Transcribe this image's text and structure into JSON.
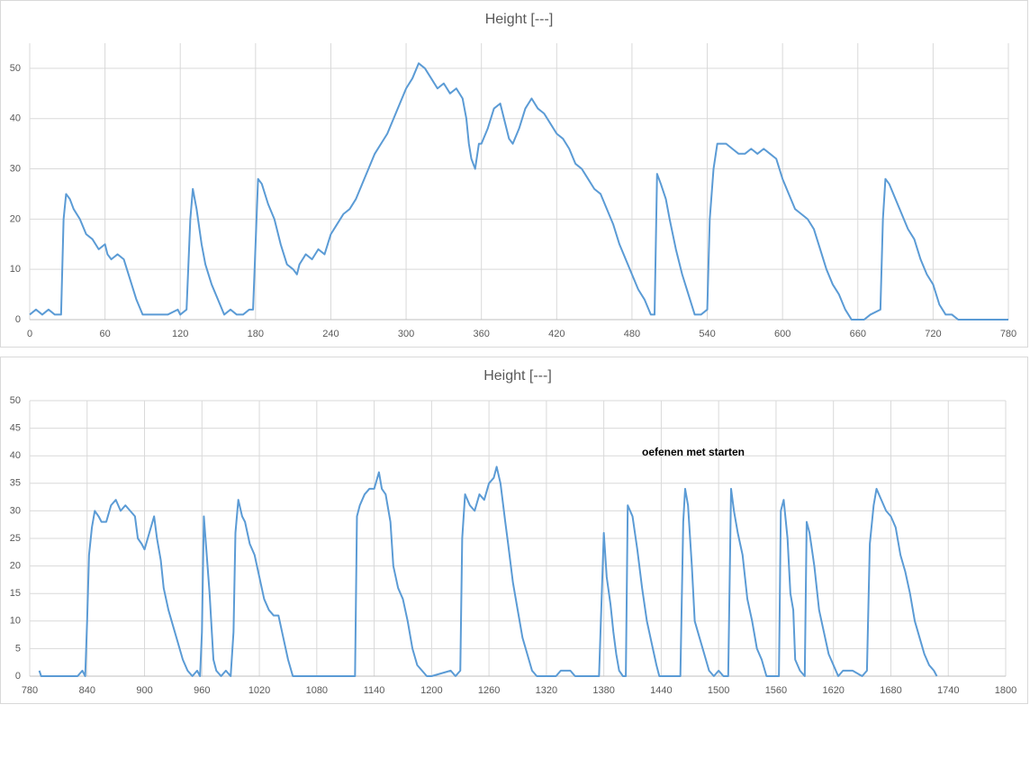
{
  "chart_data": [
    {
      "type": "line",
      "title": "Height [---]",
      "x": [
        0,
        5,
        10,
        15,
        20,
        25,
        27,
        29,
        32,
        35,
        40,
        45,
        50,
        55,
        60,
        62,
        65,
        70,
        75,
        80,
        85,
        90,
        95,
        100,
        110,
        118,
        120,
        125,
        128,
        130,
        133,
        137,
        140,
        145,
        150,
        155,
        160,
        165,
        170,
        175,
        178,
        180,
        182,
        185,
        190,
        195,
        200,
        205,
        210,
        213,
        215,
        220,
        225,
        230,
        235,
        240,
        245,
        250,
        255,
        260,
        265,
        270,
        275,
        280,
        285,
        290,
        295,
        300,
        305,
        310,
        315,
        320,
        325,
        330,
        335,
        340,
        345,
        348,
        350,
        352,
        355,
        358,
        360,
        365,
        370,
        375,
        378,
        382,
        385,
        390,
        395,
        400,
        405,
        410,
        415,
        420,
        425,
        430,
        435,
        440,
        445,
        450,
        455,
        460,
        465,
        470,
        475,
        480,
        485,
        490,
        495,
        498,
        500,
        503,
        507,
        510,
        515,
        520,
        525,
        530,
        535,
        540,
        542,
        545,
        548,
        555,
        560,
        565,
        570,
        575,
        580,
        585,
        590,
        595,
        600,
        605,
        610,
        615,
        620,
        625,
        630,
        635,
        640,
        645,
        650,
        655,
        660,
        665,
        670,
        678,
        680,
        682,
        685,
        690,
        695,
        700,
        705,
        710,
        715,
        720,
        725,
        730,
        735,
        740,
        780
      ],
      "series": [
        {
          "name": "Height",
          "color": "#5b9bd5",
          "values": [
            1,
            2,
            1,
            2,
            1,
            1,
            20,
            25,
            24,
            22,
            20,
            17,
            16,
            14,
            15,
            13,
            12,
            13,
            12,
            8,
            4,
            1,
            1,
            1,
            1,
            2,
            1,
            2,
            20,
            26,
            22,
            15,
            11,
            7,
            4,
            1,
            2,
            1,
            1,
            2,
            2,
            15,
            28,
            27,
            23,
            20,
            15,
            11,
            10,
            9,
            11,
            13,
            12,
            14,
            13,
            17,
            19,
            21,
            22,
            24,
            27,
            30,
            33,
            35,
            37,
            40,
            43,
            46,
            48,
            51,
            50,
            48,
            46,
            47,
            45,
            46,
            44,
            40,
            35,
            32,
            30,
            35,
            35,
            38,
            42,
            43,
            40,
            36,
            35,
            38,
            42,
            44,
            42,
            41,
            39,
            37,
            36,
            34,
            31,
            30,
            28,
            26,
            25,
            22,
            19,
            15,
            12,
            9,
            6,
            4,
            1,
            1,
            29,
            27,
            24,
            20,
            14,
            9,
            5,
            1,
            1,
            2,
            20,
            30,
            35,
            35,
            34,
            33,
            33,
            34,
            33,
            34,
            33,
            32,
            28,
            25,
            22,
            21,
            20,
            18,
            14,
            10,
            7,
            5,
            2,
            0,
            0,
            0,
            1,
            2,
            20,
            28,
            27,
            24,
            21,
            18,
            16,
            12,
            9,
            7,
            3,
            1,
            1,
            0,
            0
          ]
        }
      ],
      "xlim": [
        0,
        780
      ],
      "xticks": [
        0,
        60,
        120,
        180,
        240,
        300,
        360,
        420,
        480,
        540,
        600,
        660,
        720,
        780
      ],
      "ylim": [
        0,
        55
      ],
      "yticks": [
        0,
        10,
        20,
        30,
        40,
        50
      ],
      "grid": true
    },
    {
      "type": "line",
      "title": "Height [---]",
      "annotation": "oefenen met starten",
      "x": [
        790,
        792,
        830,
        835,
        838,
        840,
        842,
        845,
        848,
        852,
        855,
        860,
        865,
        870,
        875,
        880,
        885,
        890,
        893,
        897,
        900,
        905,
        910,
        913,
        917,
        920,
        925,
        930,
        935,
        940,
        945,
        950,
        955,
        958,
        960,
        962,
        965,
        968,
        970,
        972,
        975,
        980,
        985,
        990,
        993,
        995,
        998,
        1002,
        1005,
        1010,
        1015,
        1020,
        1025,
        1030,
        1035,
        1040,
        1045,
        1050,
        1055,
        1120,
        1122,
        1125,
        1130,
        1135,
        1140,
        1145,
        1148,
        1152,
        1157,
        1160,
        1165,
        1170,
        1175,
        1180,
        1185,
        1190,
        1195,
        1200,
        1220,
        1225,
        1230,
        1232,
        1235,
        1240,
        1245,
        1250,
        1255,
        1260,
        1265,
        1268,
        1272,
        1277,
        1280,
        1285,
        1290,
        1295,
        1300,
        1305,
        1310,
        1330,
        1335,
        1345,
        1350,
        1375,
        1380,
        1383,
        1387,
        1390,
        1393,
        1396,
        1400,
        1403,
        1405,
        1410,
        1415,
        1420,
        1425,
        1430,
        1435,
        1438,
        1460,
        1463,
        1465,
        1468,
        1472,
        1475,
        1480,
        1485,
        1490,
        1495,
        1500,
        1505,
        1510,
        1513,
        1516,
        1520,
        1525,
        1530,
        1535,
        1540,
        1545,
        1550,
        1563,
        1565,
        1568,
        1572,
        1575,
        1578,
        1580,
        1585,
        1590,
        1592,
        1595,
        1600,
        1605,
        1610,
        1615,
        1620,
        1625,
        1630,
        1640,
        1650,
        1655,
        1658,
        1662,
        1665,
        1670,
        1675,
        1680,
        1685,
        1690,
        1695,
        1700,
        1705,
        1710,
        1715,
        1720,
        1725,
        1728
      ],
      "series": [
        {
          "name": "Height",
          "color": "#5b9bd5",
          "values": [
            1,
            0,
            0,
            1,
            0,
            10,
            22,
            27,
            30,
            29,
            28,
            28,
            31,
            32,
            30,
            31,
            30,
            29,
            25,
            24,
            23,
            26,
            29,
            25,
            21,
            16,
            12,
            9,
            6,
            3,
            1,
            0,
            1,
            0,
            8,
            29,
            22,
            15,
            9,
            3,
            1,
            0,
            1,
            0,
            8,
            26,
            32,
            29,
            28,
            24,
            22,
            18,
            14,
            12,
            11,
            11,
            7,
            3,
            0,
            0,
            29,
            31,
            33,
            34,
            34,
            37,
            34,
            33,
            28,
            20,
            16,
            14,
            10,
            5,
            2,
            1,
            0,
            0,
            1,
            0,
            1,
            25,
            33,
            31,
            30,
            33,
            32,
            35,
            36,
            38,
            35,
            28,
            24,
            17,
            12,
            7,
            4,
            1,
            0,
            0,
            1,
            1,
            0,
            0,
            26,
            18,
            13,
            8,
            4,
            1,
            0,
            0,
            31,
            29,
            23,
            16,
            10,
            6,
            2,
            0,
            0,
            28,
            34,
            31,
            20,
            10,
            7,
            4,
            1,
            0,
            1,
            0,
            0,
            34,
            30,
            26,
            22,
            14,
            10,
            5,
            3,
            0,
            0,
            30,
            32,
            25,
            15,
            12,
            3,
            1,
            0,
            28,
            26,
            20,
            12,
            8,
            4,
            2,
            0,
            1,
            1,
            0,
            1,
            24,
            31,
            34,
            32,
            30,
            29,
            27,
            22,
            19,
            15,
            10,
            7,
            4,
            2,
            1,
            0
          ]
        }
      ],
      "xlim": [
        780,
        1800
      ],
      "xticks": [
        780,
        840,
        900,
        960,
        1020,
        1080,
        1140,
        1200,
        1260,
        1320,
        1380,
        1440,
        1500,
        1560,
        1620,
        1680,
        1740,
        1800
      ],
      "ylim": [
        0,
        50
      ],
      "yticks": [
        0,
        5,
        10,
        15,
        20,
        25,
        30,
        35,
        40,
        45,
        50
      ],
      "grid": true
    }
  ]
}
